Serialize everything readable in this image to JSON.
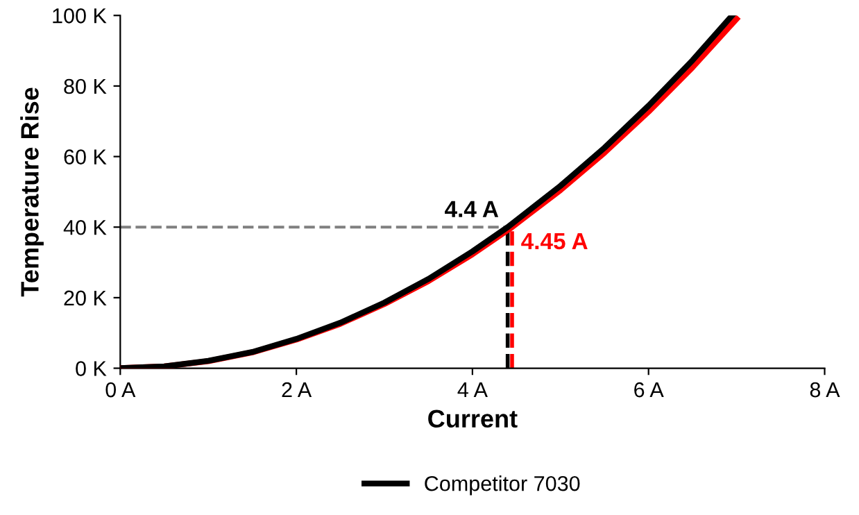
{
  "chart_data": {
    "type": "line",
    "xlabel": "Current",
    "ylabel": "Temperature Rise",
    "series": [
      {
        "color": "#ff0000",
        "x": [
          0,
          0.5,
          1,
          1.5,
          2,
          2.5,
          3,
          3.5,
          4,
          4.45,
          5,
          5.5,
          6,
          6.5,
          7.0
        ],
        "values": [
          0,
          0.5,
          2.0,
          4.5,
          8.1,
          12.6,
          18.2,
          24.7,
          32.3,
          40,
          50.5,
          61.1,
          72.7,
          85.3,
          99
        ]
      },
      {
        "name": "Competitor 7030",
        "color": "#000000",
        "x": [
          0,
          0.5,
          1,
          1.5,
          2,
          2.5,
          3,
          3.5,
          4,
          4.4,
          5,
          5.5,
          6,
          6.5,
          6.95
        ],
        "values": [
          0,
          0.5,
          2.1,
          4.6,
          8.3,
          12.9,
          18.6,
          25.3,
          33.1,
          40,
          51.7,
          62.5,
          74.4,
          87.3,
          100
        ]
      }
    ],
    "xlim": [
      0,
      8
    ],
    "xticks": [
      {
        "value": 0,
        "label": "0 A"
      },
      {
        "value": 2,
        "label": "2 A"
      },
      {
        "value": 4,
        "label": "4 A"
      },
      {
        "value": 6,
        "label": "6 A"
      },
      {
        "value": 8,
        "label": "8 A"
      }
    ],
    "ylim": [
      0,
      100
    ],
    "yticks": [
      {
        "value": 0,
        "label": "0 K"
      },
      {
        "value": 20,
        "label": "20 K"
      },
      {
        "value": 40,
        "label": "40 K"
      },
      {
        "value": 60,
        "label": "60 K"
      },
      {
        "value": 80,
        "label": "80 K"
      },
      {
        "value": 100,
        "label": "100 K"
      }
    ],
    "ref_lines": [
      {
        "axis": "y",
        "value": 40,
        "color": "#808080",
        "line_style": "dashed"
      },
      {
        "axis": "x",
        "value": 4.4,
        "label": "4.4 A",
        "color": "#000000",
        "line_style": "dashed"
      },
      {
        "axis": "x",
        "value": 4.45,
        "label": "4.45 A",
        "color": "#ff0000",
        "line_style": "dashed"
      }
    ],
    "grid": false,
    "legend": "bottom",
    "marker": "none",
    "line_style": "solid"
  }
}
